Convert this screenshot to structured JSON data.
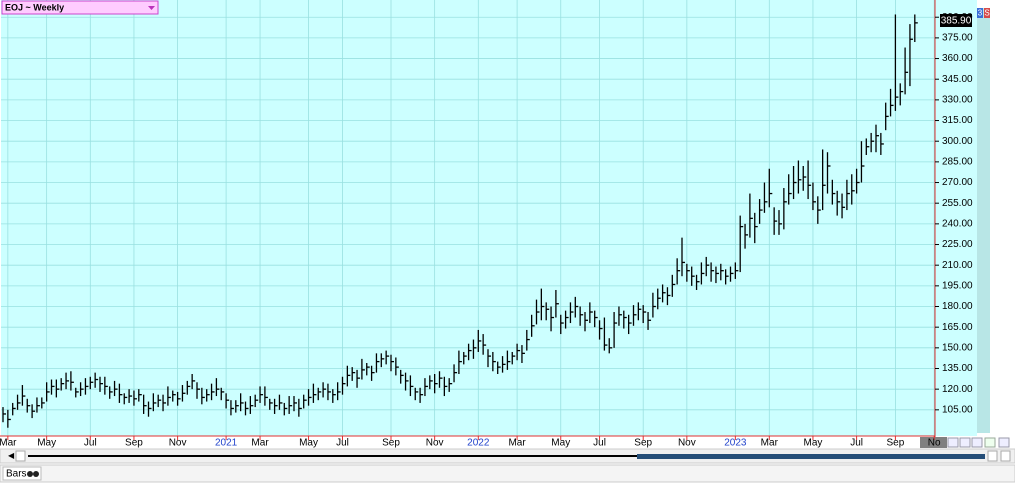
{
  "chart_data": {
    "type": "ohlc",
    "title": "EOJ ~ Weekly",
    "color": "#000000",
    "grid": true,
    "categories": [
      null,
      "Mar",
      null,
      null,
      null,
      null,
      null,
      null,
      null,
      "May",
      null,
      null,
      null,
      null,
      null,
      null,
      null,
      null,
      "Jul",
      null,
      null,
      null,
      null,
      null,
      null,
      null,
      null,
      "Sep",
      null,
      null,
      null,
      null,
      null,
      null,
      null,
      null,
      "Nov",
      null,
      null,
      null,
      null,
      null,
      null,
      null,
      null,
      null,
      "2021",
      null,
      null,
      null,
      null,
      null,
      null,
      "Mar",
      null,
      null,
      null,
      null,
      null,
      null,
      null,
      null,
      null,
      "May",
      null,
      null,
      null,
      null,
      null,
      null,
      "Jul",
      null,
      null,
      null,
      null,
      null,
      null,
      null,
      null,
      null,
      "Sep",
      null,
      null,
      null,
      null,
      null,
      null,
      null,
      null,
      "Nov",
      null,
      null,
      null,
      null,
      null,
      null,
      null,
      null,
      "2022",
      null,
      null,
      null,
      null,
      null,
      null,
      null,
      "Mar",
      null,
      null,
      null,
      null,
      null,
      null,
      null,
      null,
      "May",
      null,
      null,
      null,
      null,
      null,
      null,
      null,
      "Jul",
      null,
      null,
      null,
      null,
      null,
      null,
      null,
      null,
      "Sep",
      null,
      null,
      null,
      null,
      null,
      null,
      null,
      null,
      "Nov",
      null,
      null,
      null,
      null,
      null,
      null,
      null,
      null,
      null,
      "2023",
      null,
      null,
      null,
      null,
      null,
      null,
      "Mar",
      null,
      null,
      null,
      null,
      null,
      null,
      null,
      null,
      "May",
      null,
      null,
      null,
      null,
      null,
      null,
      null,
      null,
      "Jul",
      null,
      null,
      null,
      null,
      null,
      null,
      null,
      "Sep",
      null,
      null,
      null,
      null,
      null,
      null,
      null,
      "No"
    ],
    "high": [
      107,
      105,
      110,
      116,
      123,
      113,
      109,
      114,
      114,
      125,
      127,
      127,
      128,
      132,
      133,
      121,
      125,
      128,
      129,
      132,
      129,
      129,
      122,
      126,
      124,
      117,
      120,
      119,
      120,
      116,
      111,
      117,
      116,
      116,
      122,
      119,
      118,
      123,
      126,
      131,
      125,
      121,
      120,
      124,
      128,
      121,
      117,
      112,
      112,
      117,
      111,
      115,
      116,
      122,
      122,
      113,
      113,
      116,
      110,
      115,
      115,
      113,
      116,
      120,
      124,
      121,
      125,
      124,
      120,
      125,
      129,
      137,
      136,
      134,
      142,
      139,
      137,
      146,
      146,
      148,
      145,
      143,
      134,
      132,
      130,
      121,
      121,
      128,
      130,
      131,
      133,
      129,
      128,
      138,
      148,
      147,
      153,
      156,
      163,
      160,
      149,
      147,
      140,
      144,
      148,
      147,
      153,
      152,
      163,
      174,
      185,
      193,
      183,
      180,
      192,
      174,
      177,
      183,
      187,
      180,
      176,
      183,
      177,
      170,
      172,
      157,
      176,
      180,
      177,
      174,
      181,
      183,
      181,
      176,
      190,
      193,
      196,
      194,
      203,
      215,
      230,
      211,
      209,
      203,
      212,
      216,
      212,
      209,
      211,
      207,
      209,
      212,
      246,
      240,
      262,
      248,
      258,
      270,
      280,
      252,
      250,
      266,
      276,
      282,
      286,
      282,
      286,
      270,
      260,
      294,
      292,
      272,
      264,
      262,
      272,
      276,
      280,
      300,
      302,
      306,
      312,
      306,
      328,
      338,
      392,
      342,
      368,
      385,
      392,
      null,
      null,
      null,
      null
    ],
    "low": [
      96,
      92,
      101,
      105,
      108,
      103,
      99,
      103,
      106,
      111,
      116,
      114,
      119,
      120,
      119,
      114,
      115,
      116,
      120,
      121,
      118,
      116,
      113,
      115,
      110,
      109,
      110,
      108,
      111,
      102,
      100,
      104,
      107,
      104,
      108,
      111,
      108,
      111,
      116,
      120,
      113,
      109,
      111,
      112,
      115,
      112,
      106,
      101,
      103,
      104,
      101,
      102,
      107,
      110,
      108,
      105,
      102,
      105,
      101,
      102,
      104,
      100,
      106,
      108,
      110,
      112,
      114,
      112,
      110,
      112,
      116,
      122,
      126,
      121,
      127,
      130,
      126,
      132,
      136,
      138,
      133,
      130,
      124,
      119,
      115,
      112,
      110,
      115,
      120,
      117,
      121,
      115,
      118,
      125,
      131,
      138,
      141,
      142,
      147,
      145,
      136,
      133,
      131,
      132,
      134,
      138,
      141,
      139,
      148,
      158,
      167,
      170,
      170,
      162,
      172,
      160,
      164,
      168,
      172,
      166,
      162,
      168,
      165,
      156,
      148,
      146,
      150,
      166,
      164,
      160,
      166,
      170,
      168,
      163,
      172,
      178,
      183,
      181,
      187,
      196,
      202,
      198,
      195,
      192,
      196,
      202,
      198,
      197,
      199,
      196,
      198,
      200,
      205,
      222,
      230,
      226,
      240,
      248,
      252,
      232,
      232,
      236,
      254,
      258,
      262,
      264,
      258,
      250,
      240,
      250,
      262,
      254,
      246,
      244,
      250,
      254,
      262,
      270,
      290,
      292,
      292,
      290,
      308,
      318,
      322,
      326,
      334,
      340,
      372,
      null,
      null,
      null,
      null
    ],
    "close": [
      102,
      98,
      106,
      110,
      115,
      108,
      104,
      108,
      110,
      118,
      122,
      120,
      124,
      126,
      125,
      118,
      120,
      122,
      125,
      127,
      124,
      122,
      118,
      120,
      116,
      114,
      115,
      113,
      116,
      108,
      106,
      110,
      112,
      110,
      114,
      116,
      113,
      117,
      122,
      126,
      120,
      114,
      116,
      118,
      120,
      118,
      112,
      106,
      108,
      110,
      106,
      108,
      112,
      116,
      114,
      110,
      108,
      110,
      106,
      108,
      110,
      106,
      112,
      114,
      116,
      118,
      120,
      118,
      116,
      118,
      124,
      130,
      132,
      128,
      134,
      136,
      132,
      140,
      142,
      144,
      140,
      136,
      130,
      126,
      122,
      118,
      116,
      122,
      126,
      124,
      128,
      122,
      124,
      132,
      140,
      144,
      148,
      150,
      155,
      152,
      144,
      140,
      136,
      138,
      140,
      144,
      148,
      146,
      156,
      166,
      176,
      180,
      178,
      172,
      182,
      168,
      172,
      176,
      180,
      174,
      170,
      176,
      172,
      164,
      152,
      150,
      168,
      174,
      172,
      168,
      174,
      178,
      176,
      170,
      180,
      186,
      190,
      188,
      196,
      206,
      212,
      206,
      202,
      198,
      204,
      210,
      206,
      204,
      206,
      202,
      204,
      206,
      238,
      232,
      244,
      238,
      250,
      256,
      262,
      242,
      240,
      256,
      262,
      270,
      272,
      274,
      268,
      256,
      250,
      268,
      282,
      262,
      256,
      252,
      262,
      264,
      270,
      282,
      296,
      300,
      304,
      298,
      318,
      326,
      332,
      336,
      350,
      374,
      385.9,
      null,
      null,
      null,
      null
    ],
    "last_price_label": "385.90",
    "ylim": [
      86,
      402.5
    ],
    "yticks": [
      {
        "value": 105,
        "label": "105.00"
      },
      {
        "value": 120,
        "label": "120.00"
      },
      {
        "value": 135,
        "label": "135.00"
      },
      {
        "value": 150,
        "label": "150.00"
      },
      {
        "value": 165,
        "label": "165.00"
      },
      {
        "value": 180,
        "label": "180.00"
      },
      {
        "value": 195,
        "label": "195.00"
      },
      {
        "value": 210,
        "label": "210.00"
      },
      {
        "value": 225,
        "label": "225.00"
      },
      {
        "value": 240,
        "label": "240.00"
      },
      {
        "value": 255,
        "label": "255.00"
      },
      {
        "value": 270,
        "label": "270.00"
      },
      {
        "value": 285,
        "label": "285.00"
      },
      {
        "value": 300,
        "label": "300.00"
      },
      {
        "value": 315,
        "label": "315.00"
      },
      {
        "value": 330,
        "label": "330.00"
      },
      {
        "value": 345,
        "label": "345.00"
      },
      {
        "value": 360,
        "label": "360.00"
      },
      {
        "value": 375,
        "label": "375.00"
      },
      {
        "value": 390,
        "label": "390.00"
      }
    ]
  },
  "ui": {
    "chart_style": "Bars",
    "badge_left": "3",
    "badge_right": "S"
  }
}
